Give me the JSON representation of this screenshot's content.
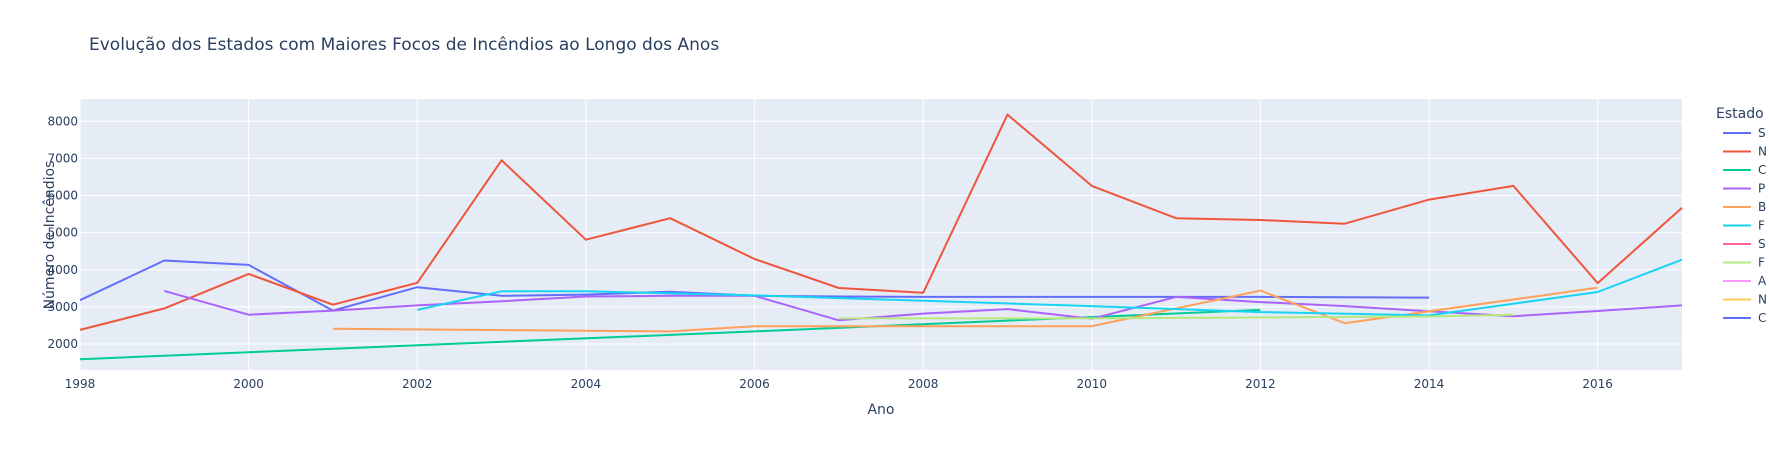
{
  "chart_data": {
    "type": "line",
    "title": "Evolução dos Estados com Maiores Focos de Incêndios ao Longo dos Anos",
    "xlabel": "Ano",
    "ylabel": "Número de Incêndios",
    "xlim": [
      1998,
      2017
    ],
    "ylim": [
      1300,
      8600
    ],
    "x_ticks": [
      1998,
      2000,
      2002,
      2004,
      2006,
      2008,
      2010,
      2012,
      2014,
      2016
    ],
    "y_ticks": [
      2000,
      3000,
      4000,
      5000,
      6000,
      7000,
      8000
    ],
    "grid": true,
    "legend_title": "Estado",
    "legend_position": "right",
    "series": [
      {
        "name": "S",
        "color": "#636efa",
        "x": [
          1998,
          1999,
          2000,
          2001,
          2002,
          2003,
          2004,
          2005,
          2006,
          2007,
          2008,
          2009,
          2010,
          2011,
          2012,
          2013,
          2014
        ],
        "y": [
          3180,
          4250,
          4130,
          2900,
          3530,
          3300,
          3330,
          3410,
          3300,
          3280,
          3270,
          3270,
          3270,
          3270,
          3270,
          3260,
          3250
        ]
      },
      {
        "name": "N",
        "color": "#ef553b",
        "x": [
          1998,
          1999,
          2000,
          2001,
          2002,
          2003,
          2004,
          2005,
          2006,
          2007,
          2008,
          2009,
          2010,
          2011,
          2012,
          2013,
          2014,
          2015,
          2016,
          2017
        ],
        "y": [
          2380,
          2960,
          3890,
          3060,
          3650,
          6950,
          4810,
          5390,
          4290,
          3510,
          3380,
          8180,
          6260,
          5390,
          5340,
          5240,
          5890,
          6260,
          3640,
          5670
        ]
      },
      {
        "name": "C",
        "color": "#00cc96",
        "x": [
          1998,
          2006,
          2012
        ],
        "y": [
          1590,
          2340,
          2920
        ]
      },
      {
        "name": "P",
        "color": "#ab63fa",
        "x": [
          1999,
          2000,
          2001,
          2002,
          2003,
          2004,
          2005,
          2006,
          2007,
          2008,
          2009,
          2010,
          2011,
          2012,
          2013,
          2014,
          2015,
          2016,
          2017
        ],
        "y": [
          3430,
          2790,
          2900,
          3040,
          3150,
          3280,
          3300,
          3300,
          2640,
          2820,
          2940,
          2680,
          3270,
          3130,
          3020,
          2880,
          2750,
          2890,
          3040
        ]
      },
      {
        "name": "B",
        "color": "#ffa15a",
        "x": [
          2001,
          2005,
          2006,
          2010,
          2012,
          2013,
          2014,
          2016
        ],
        "y": [
          2410,
          2340,
          2480,
          2480,
          3440,
          2560,
          2880,
          3520
        ]
      },
      {
        "name": "F",
        "color": "#19d3f3",
        "x": [
          2002,
          2003,
          2004,
          2006,
          2010,
          2012,
          2014,
          2016,
          2017
        ],
        "y": [
          2920,
          3420,
          3420,
          3310,
          3020,
          2860,
          2770,
          3400,
          4270
        ]
      },
      {
        "name": "S",
        "color": "#ff6692",
        "x": [],
        "y": []
      },
      {
        "name": "F",
        "color": "#b6e880",
        "x": [
          2007,
          2010,
          2014,
          2015
        ],
        "y": [
          2690,
          2690,
          2740,
          2790
        ]
      },
      {
        "name": "A",
        "color": "#ff97ff",
        "x": [],
        "y": []
      },
      {
        "name": "N",
        "color": "#fecb52",
        "x": [],
        "y": []
      },
      {
        "name": "C",
        "color": "#636efa",
        "x": [],
        "y": []
      }
    ]
  }
}
